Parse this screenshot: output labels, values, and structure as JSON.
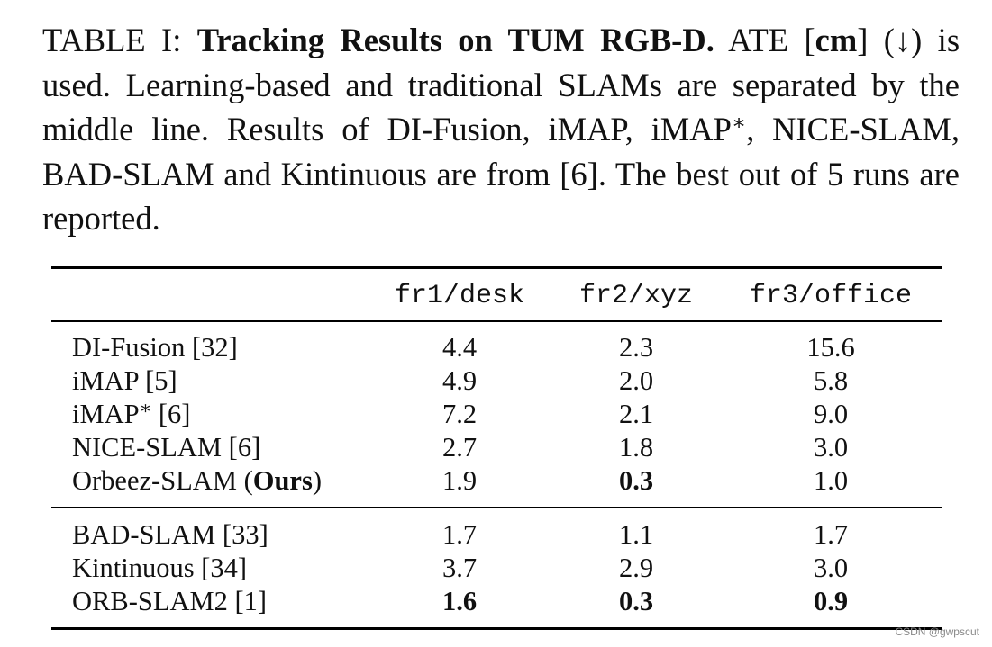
{
  "caption": {
    "label": "TABLE I:",
    "bold_title": "Tracking Results on TUM RGB-D.",
    "text1": " ATE [",
    "unit": "cm",
    "text2": "] (↓) is used. Learning-based and traditional SLAMs are separated by the middle line. Results of DI-Fusion, iMAP, iMAP",
    "star": "∗",
    "text3": ", NICE-SLAM, BAD-SLAM and Kintinuous are from [6]. The best out of 5 runs are reported."
  },
  "table": {
    "columns": [
      "fr1/desk",
      "fr2/xyz",
      "fr3/office"
    ],
    "group1": [
      {
        "method": "DI-Fusion [32]",
        "v": [
          "4.4",
          "2.3",
          "15.6"
        ],
        "bold": [
          false,
          false,
          false
        ]
      },
      {
        "method": "iMAP [5]",
        "v": [
          "4.9",
          "2.0",
          "5.8"
        ],
        "bold": [
          false,
          false,
          false
        ]
      },
      {
        "method": "iMAP",
        "method_sup": "∗",
        "method_suffix": " [6]",
        "v": [
          "7.2",
          "2.1",
          "9.0"
        ],
        "bold": [
          false,
          false,
          false
        ]
      },
      {
        "method": "NICE-SLAM [6]",
        "v": [
          "2.7",
          "1.8",
          "3.0"
        ],
        "bold": [
          false,
          false,
          false
        ]
      },
      {
        "method": "Orbeez-SLAM (",
        "method_bold": "Ours",
        "method_suffix": ")",
        "v": [
          "1.9",
          "0.3",
          "1.0"
        ],
        "bold": [
          false,
          true,
          false
        ]
      }
    ],
    "group2": [
      {
        "method": "BAD-SLAM [33]",
        "v": [
          "1.7",
          "1.1",
          "1.7"
        ],
        "bold": [
          false,
          false,
          false
        ]
      },
      {
        "method": "Kintinuous [34]",
        "v": [
          "3.7",
          "2.9",
          "3.0"
        ],
        "bold": [
          false,
          false,
          false
        ]
      },
      {
        "method": "ORB-SLAM2 [1]",
        "v": [
          "1.6",
          "0.3",
          "0.9"
        ],
        "bold": [
          true,
          true,
          true
        ]
      }
    ]
  },
  "watermark": "CSDN @gwpscut"
}
